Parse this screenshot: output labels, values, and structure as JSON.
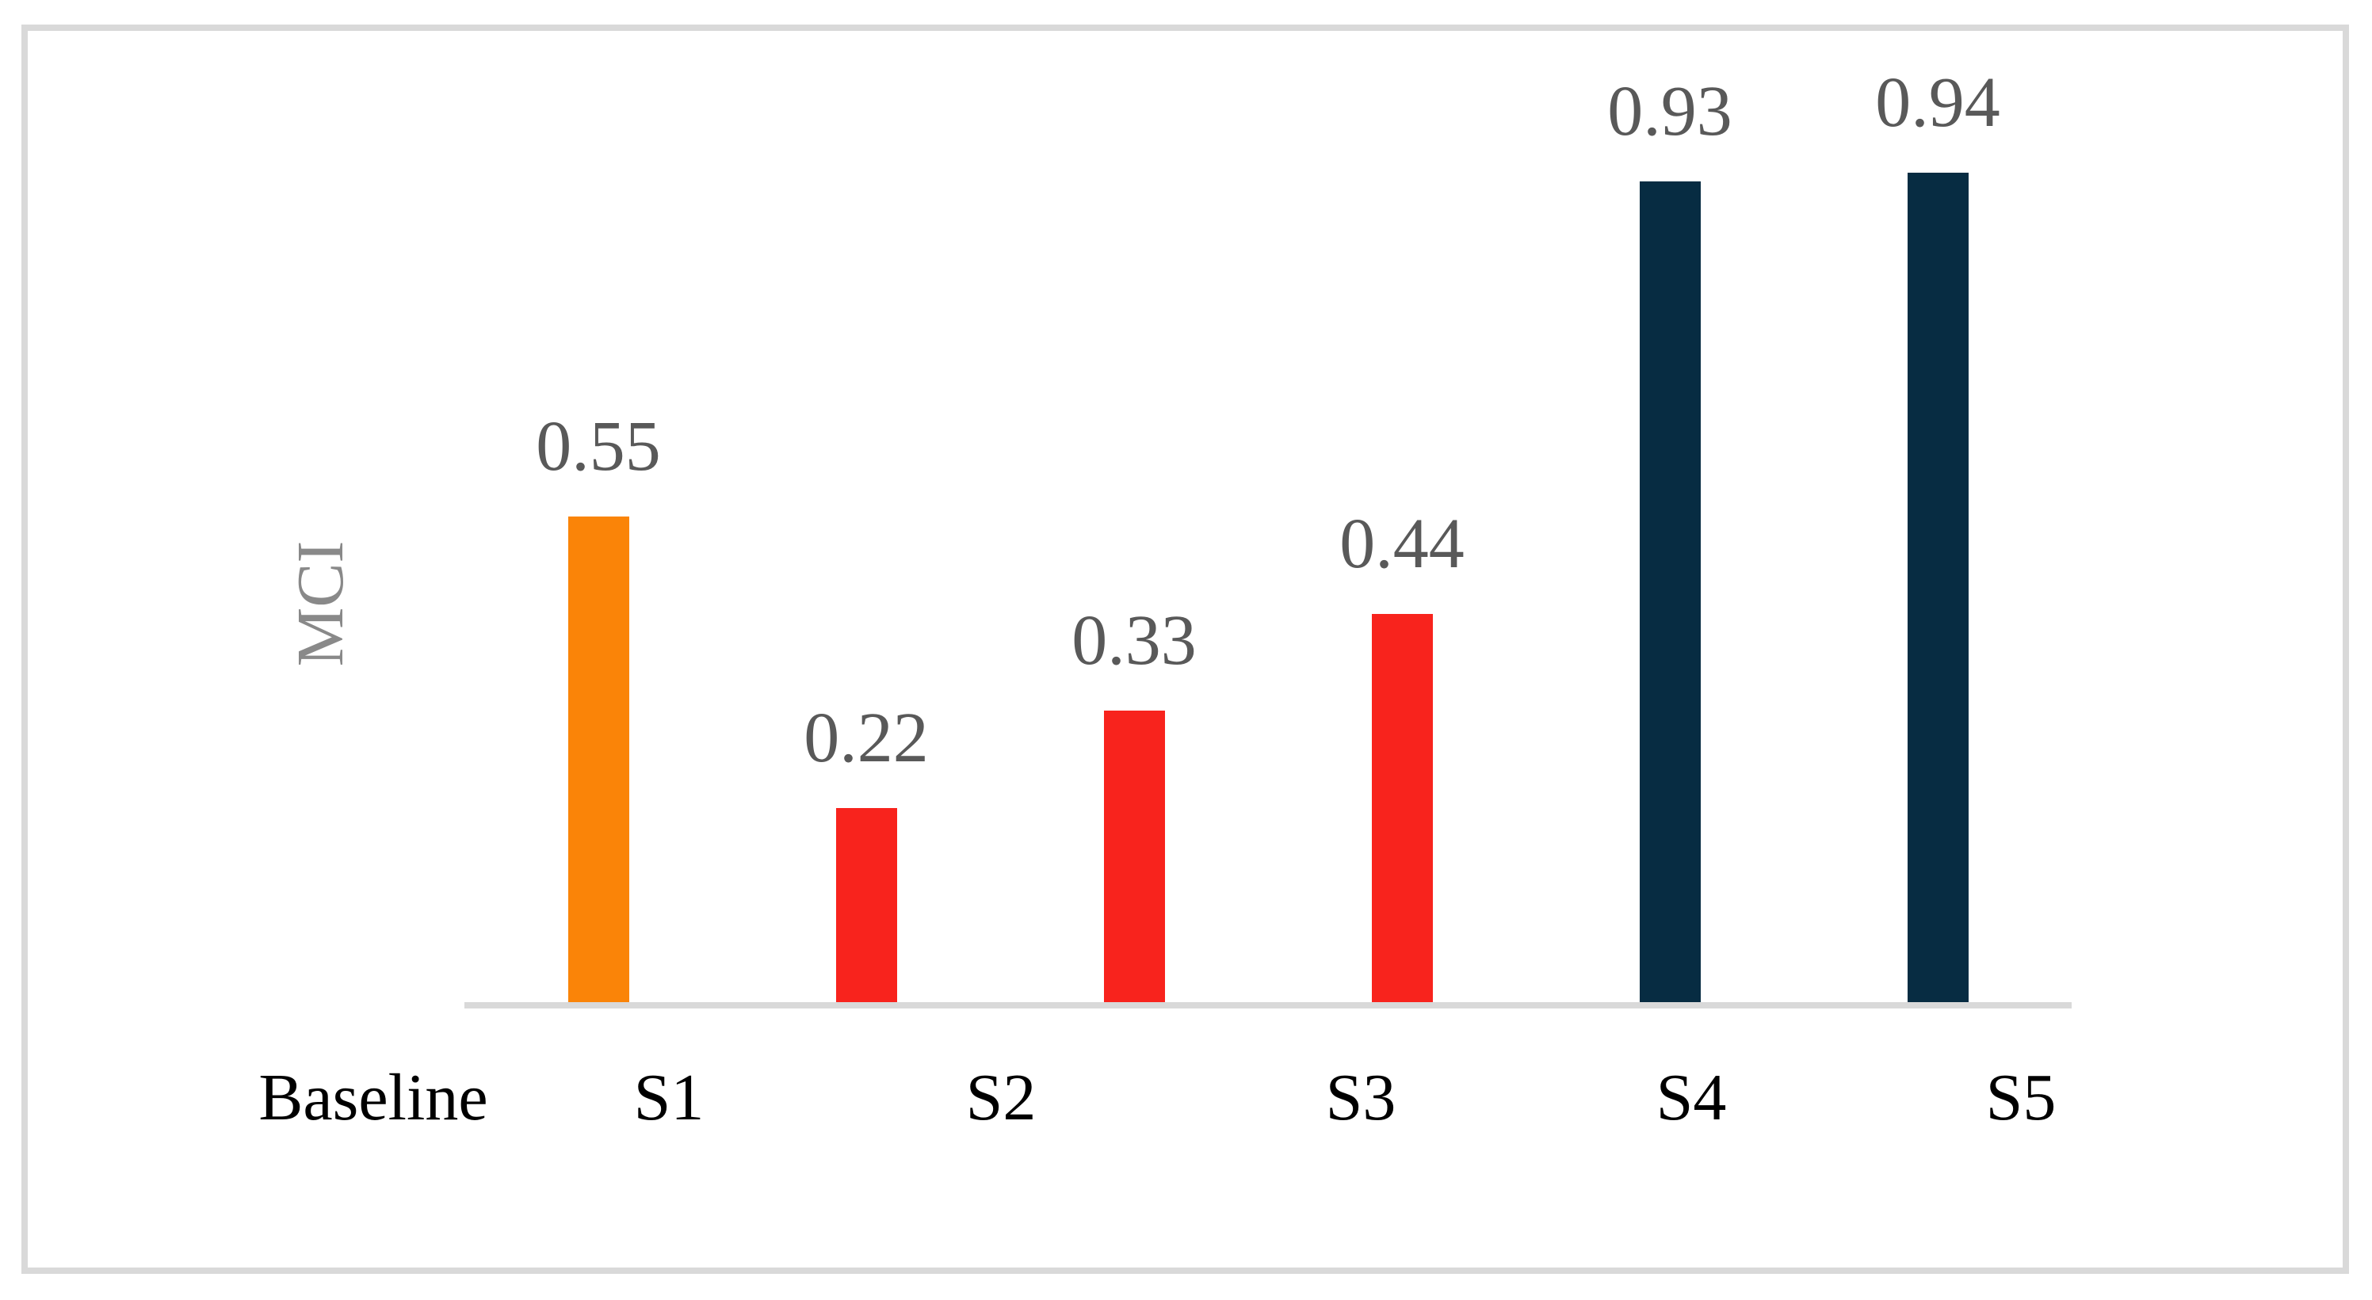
{
  "figure": {
    "background_color": "#ffffff",
    "border_color": "#d9d9d9",
    "axis_line_color": "#d9d9d9"
  },
  "chart_data": {
    "type": "bar",
    "title": "",
    "xlabel": "",
    "ylabel": "MCI",
    "categories": [
      "Baseline",
      "S1",
      "S2",
      "S3",
      "S4",
      "S5"
    ],
    "values": [
      0.55,
      0.22,
      0.33,
      0.44,
      0.93,
      0.94
    ],
    "data_labels": [
      "0.55",
      "0.22",
      "0.33",
      "0.44",
      "0.93",
      "0.94"
    ],
    "bar_colors": [
      "#fa8408",
      "#f8231d",
      "#f8231d",
      "#f8231d",
      "#072c42",
      "#072c42"
    ],
    "value_label_color": "#595959",
    "category_label_color": "#000000",
    "axis_title_color": "#898989",
    "ylim": [
      0,
      1
    ],
    "grid": false,
    "legend": false,
    "y_axis_tick_labels_visible": false,
    "data_labels_position": "above-bars"
  }
}
